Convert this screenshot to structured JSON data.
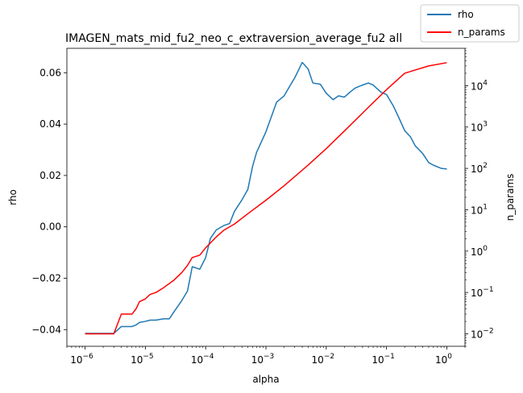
{
  "chart_data": {
    "type": "line",
    "title": "IMAGEN_mats_mid_fu2_neo_c_extraversion_average_fu2 all",
    "xlabel": "alpha",
    "ylabel": "rho",
    "y2label": "n_params",
    "xscale": "log",
    "xlim": [
      5e-07,
      2
    ],
    "ylim": [
      -0.0465,
      0.0695
    ],
    "y2scale": "log",
    "y2lim": [
      0.005,
      80000
    ],
    "grid": false,
    "legend_position": "top-right",
    "x_ticks": [
      {
        "value": 1e-06,
        "base": "10",
        "exp": "−6"
      },
      {
        "value": 1e-05,
        "base": "10",
        "exp": "−5"
      },
      {
        "value": 0.0001,
        "base": "10",
        "exp": "−4"
      },
      {
        "value": 0.001,
        "base": "10",
        "exp": "−3"
      },
      {
        "value": 0.01,
        "base": "10",
        "exp": "−2"
      },
      {
        "value": 0.1,
        "base": "10",
        "exp": "−1"
      },
      {
        "value": 1,
        "base": "10",
        "exp": "0"
      }
    ],
    "y_ticks": [
      {
        "value": 0.06,
        "label": "0.06"
      },
      {
        "value": 0.04,
        "label": "0.04"
      },
      {
        "value": 0.02,
        "label": "0.02"
      },
      {
        "value": 0.0,
        "label": "0.00"
      },
      {
        "value": -0.02,
        "label": "−0.02"
      },
      {
        "value": -0.04,
        "label": "−0.04"
      }
    ],
    "y2_ticks": [
      {
        "value": 0.01,
        "base": "10",
        "exp": "−2"
      },
      {
        "value": 0.1,
        "base": "10",
        "exp": "−1"
      },
      {
        "value": 1,
        "base": "10",
        "exp": "0"
      },
      {
        "value": 10,
        "base": "10",
        "exp": "1"
      },
      {
        "value": 100,
        "base": "10",
        "exp": "2"
      },
      {
        "value": 1000,
        "base": "10",
        "exp": "3"
      },
      {
        "value": 10000,
        "base": "10",
        "exp": "4"
      }
    ],
    "series": [
      {
        "name": "rho",
        "axis": "left",
        "color": "#1f77b4",
        "x": [
          1e-06,
          2e-06,
          3e-06,
          4e-06,
          5e-06,
          6e-06,
          7e-06,
          8e-06,
          1e-05,
          1.2e-05,
          1.5e-05,
          2e-05,
          2.5e-05,
          3e-05,
          4e-05,
          5e-05,
          6e-05,
          8e-05,
          0.0001,
          0.00012,
          0.00015,
          0.0002,
          0.00025,
          0.0003,
          0.0004,
          0.0005,
          0.0006,
          0.0007,
          0.001,
          0.0015,
          0.002,
          0.003,
          0.004,
          0.005,
          0.006,
          0.008,
          0.01,
          0.013,
          0.016,
          0.02,
          0.025,
          0.03,
          0.04,
          0.05,
          0.06,
          0.08,
          0.1,
          0.13,
          0.16,
          0.2,
          0.25,
          0.3,
          0.4,
          0.5,
          0.6,
          0.8,
          1
        ],
        "y": [
          -0.0415,
          -0.0415,
          -0.0415,
          -0.0388,
          -0.0388,
          -0.0388,
          -0.0382,
          -0.0372,
          -0.0368,
          -0.0363,
          -0.0363,
          -0.0358,
          -0.0358,
          -0.033,
          -0.0288,
          -0.025,
          -0.0155,
          -0.0165,
          -0.012,
          -0.0045,
          -0.0012,
          0.0005,
          0.0013,
          0.006,
          0.0105,
          0.0145,
          0.0235,
          0.029,
          0.037,
          0.0485,
          0.051,
          0.058,
          0.064,
          0.0615,
          0.056,
          0.0555,
          0.052,
          0.0495,
          0.051,
          0.0505,
          0.0525,
          0.054,
          0.0552,
          0.056,
          0.0552,
          0.0525,
          0.0515,
          0.047,
          0.0425,
          0.0375,
          0.035,
          0.0315,
          0.0285,
          0.025,
          0.024,
          0.0228,
          0.0225
        ]
      },
      {
        "name": "n_params",
        "axis": "right",
        "color": "#ff0000",
        "x": [
          1e-06,
          2e-06,
          3e-06,
          4e-06,
          5e-06,
          6e-06,
          7e-06,
          8e-06,
          1e-05,
          1.2e-05,
          1.5e-05,
          2e-05,
          3e-05,
          4e-05,
          5e-05,
          6e-05,
          8e-05,
          0.0001,
          0.00015,
          0.0002,
          0.0003,
          0.0005,
          0.001,
          0.002,
          0.005,
          0.01,
          0.02,
          0.05,
          0.1,
          0.2,
          0.5,
          1
        ],
        "y": [
          0.01,
          0.01,
          0.01,
          0.03,
          0.03,
          0.03,
          0.04,
          0.06,
          0.07,
          0.09,
          0.1,
          0.13,
          0.2,
          0.3,
          0.45,
          0.7,
          0.8,
          1.2,
          2.2,
          3.2,
          4.5,
          8.0,
          17,
          38,
          120,
          300,
          800,
          3000,
          8000,
          20000,
          30000,
          36000
        ]
      }
    ]
  }
}
